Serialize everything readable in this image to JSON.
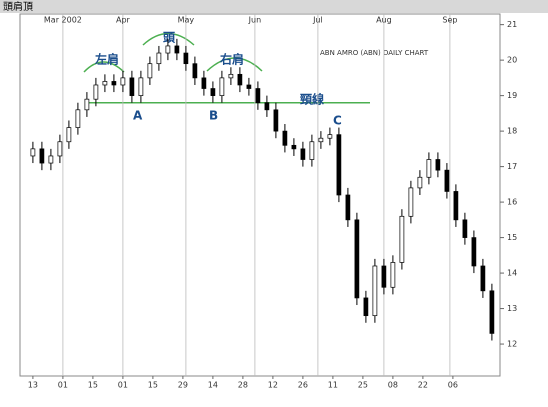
{
  "header": {
    "title": "頭肩頂"
  },
  "chart_data": {
    "type": "candlestick",
    "title": "ABN AMRO (ABN) DAILY CHART",
    "x": [
      0,
      3,
      6,
      9,
      12,
      15,
      18,
      21,
      24,
      27,
      30,
      33,
      36,
      39,
      42,
      45,
      48,
      51,
      54,
      57,
      60,
      63,
      66,
      69,
      72,
      75,
      78,
      81,
      84,
      87,
      90,
      93,
      96,
      99,
      102,
      105,
      108,
      111,
      114,
      117,
      120,
      123,
      126,
      129,
      132,
      135,
      138,
      141,
      144,
      147,
      150,
      153
    ],
    "open": [
      17.3,
      17.5,
      17.1,
      17.3,
      17.7,
      18.1,
      18.6,
      18.9,
      19.3,
      19.4,
      19.3,
      19.5,
      19.0,
      19.5,
      19.9,
      20.2,
      20.4,
      20.2,
      19.9,
      19.5,
      19.2,
      19.0,
      19.5,
      19.6,
      19.3,
      19.2,
      18.8,
      18.6,
      18.0,
      17.6,
      17.5,
      17.2,
      17.7,
      17.8,
      17.9,
      16.2,
      15.5,
      13.3,
      12.8,
      14.2,
      13.6,
      14.3,
      15.6,
      16.4,
      16.7,
      17.2,
      16.9,
      16.3,
      15.5,
      15.0,
      14.2,
      13.5
    ],
    "high": [
      17.7,
      17.7,
      17.5,
      17.9,
      18.3,
      18.8,
      19.1,
      19.5,
      19.6,
      19.6,
      19.7,
      19.7,
      19.7,
      20.1,
      20.4,
      20.6,
      20.6,
      20.4,
      20.1,
      19.7,
      19.4,
      19.7,
      19.8,
      19.8,
      19.5,
      19.4,
      19.0,
      18.8,
      18.2,
      17.8,
      17.7,
      17.9,
      18.0,
      18.1,
      18.1,
      16.4,
      15.7,
      13.5,
      14.4,
      14.4,
      14.5,
      15.8,
      16.6,
      16.9,
      17.4,
      17.4,
      17.1,
      16.5,
      15.7,
      15.2,
      14.4,
      13.7
    ],
    "low": [
      17.1,
      16.9,
      16.9,
      17.1,
      17.5,
      17.9,
      18.4,
      18.7,
      19.1,
      19.1,
      19.1,
      18.8,
      18.8,
      19.3,
      19.7,
      20.0,
      20.0,
      19.7,
      19.3,
      19.0,
      18.8,
      18.8,
      19.3,
      19.1,
      19.0,
      18.6,
      18.4,
      17.8,
      17.4,
      17.3,
      17.0,
      17.0,
      17.5,
      17.6,
      16.0,
      15.3,
      13.1,
      12.6,
      12.6,
      13.4,
      13.4,
      14.1,
      15.4,
      16.2,
      16.5,
      16.7,
      16.1,
      15.3,
      14.8,
      14.0,
      13.3,
      12.1
    ],
    "close": [
      17.5,
      17.1,
      17.3,
      17.7,
      18.1,
      18.6,
      18.9,
      19.3,
      19.4,
      19.3,
      19.5,
      19.0,
      19.5,
      19.9,
      20.2,
      20.4,
      20.2,
      19.9,
      19.5,
      19.2,
      19.0,
      19.5,
      19.6,
      19.3,
      19.2,
      18.8,
      18.6,
      18.0,
      17.6,
      17.5,
      17.2,
      17.7,
      17.8,
      17.9,
      16.2,
      15.5,
      13.3,
      12.8,
      14.2,
      13.6,
      14.3,
      15.6,
      16.4,
      16.7,
      17.2,
      16.9,
      16.3,
      15.5,
      15.0,
      14.2,
      13.5,
      12.3
    ],
    "xlim": [
      -4.3,
      155.7
    ],
    "ylim": [
      11.1,
      21.3
    ],
    "yticks": [
      12,
      13,
      14,
      15,
      16,
      17,
      18,
      19,
      20,
      21
    ],
    "xticks": [
      {
        "value": 0,
        "label": "13"
      },
      {
        "value": 10,
        "label": "01"
      },
      {
        "value": 20,
        "label": "15"
      },
      {
        "value": 30,
        "label": "01"
      },
      {
        "value": 40,
        "label": "15"
      },
      {
        "value": 50,
        "label": "29"
      },
      {
        "value": 60,
        "label": "14"
      },
      {
        "value": 70,
        "label": "28"
      },
      {
        "value": 80,
        "label": "12"
      },
      {
        "value": 90,
        "label": "26"
      },
      {
        "value": 100,
        "label": "11"
      },
      {
        "value": 110,
        "label": "25"
      },
      {
        "value": 120,
        "label": "08"
      },
      {
        "value": 130,
        "label": "22"
      },
      {
        "value": 140,
        "label": "06"
      }
    ],
    "month_ticks": [
      {
        "value": 10,
        "label": "Mar 2002"
      },
      {
        "value": 30,
        "label": "Apr"
      },
      {
        "value": 51,
        "label": "May"
      },
      {
        "value": 74,
        "label": "Jun"
      },
      {
        "value": 95,
        "label": "Jul"
      },
      {
        "value": 117,
        "label": "Aug"
      },
      {
        "value": 139,
        "label": "Sep"
      }
    ],
    "neckline": 18.8,
    "annotations": [
      "左肩",
      "頭",
      "右肩",
      "頸線",
      "A",
      "B",
      "C"
    ],
    "up_color": "#ffffff",
    "down_color": "#000000",
    "neckline_color": "#4caf50"
  }
}
